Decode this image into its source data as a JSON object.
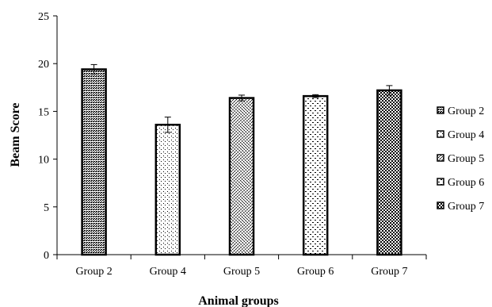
{
  "chart_data": {
    "type": "bar",
    "xlabel": "Animal groups",
    "ylabel": "Beam Score",
    "ylim": [
      0,
      25
    ],
    "yticks": [
      0,
      5,
      10,
      15,
      20,
      25
    ],
    "categories": [
      "Group 2",
      "Group 4",
      "Group 5",
      "Group 6",
      "Group 7"
    ],
    "values": [
      19.4,
      13.6,
      16.4,
      16.6,
      17.2
    ],
    "errors": [
      0.5,
      0.8,
      0.3,
      0.15,
      0.5
    ],
    "grid": false,
    "legend": {
      "placement": "right",
      "entries": [
        "Group 2",
        "Group 4",
        "Group 5",
        "Group 6",
        "Group 7"
      ]
    }
  }
}
